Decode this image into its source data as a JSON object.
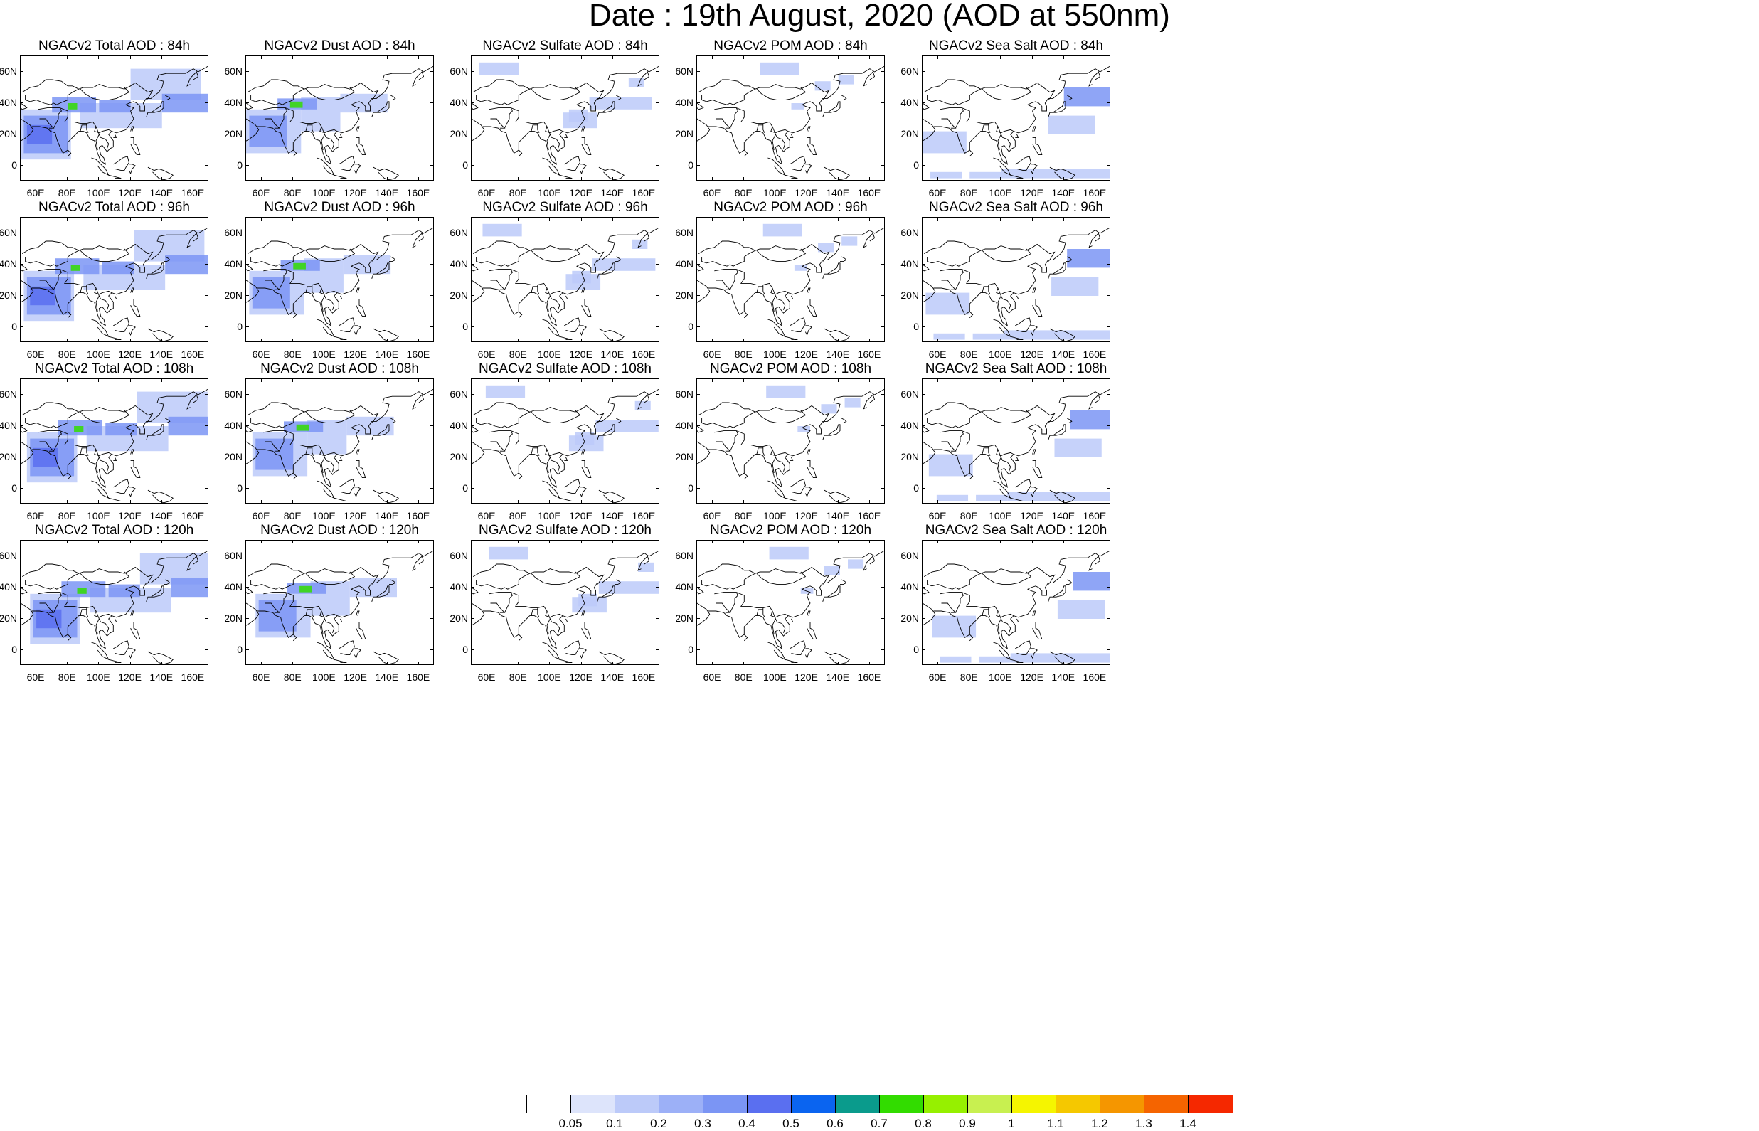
{
  "title": "Date : 19th August, 2020 (AOD at 550nm)",
  "columns": [
    "total",
    "dust",
    "sulfate",
    "pom",
    "seasalt"
  ],
  "rows": [
    "84h",
    "96h",
    "108h",
    "120h"
  ],
  "panel_titles": [
    [
      "NGACv2 Total AOD : 84h",
      "NGACv2 Dust AOD : 84h",
      "NGACv2 Sulfate AOD : 84h",
      "NGACv2 POM AOD : 84h",
      "NGACv2 Sea Salt AOD : 84h"
    ],
    [
      "NGACv2 Total AOD : 96h",
      "NGACv2 Dust AOD : 96h",
      "NGACv2 Sulfate AOD : 96h",
      "NGACv2 POM AOD : 96h",
      "NGACv2 Sea Salt AOD : 96h"
    ],
    [
      "NGACv2 Total AOD : 108h",
      "NGACv2 Dust AOD : 108h",
      "NGACv2 Sulfate AOD : 108h",
      "NGACv2 POM AOD : 108h",
      "NGACv2 Sea Salt AOD : 108h"
    ],
    [
      "NGACv2 Total AOD : 120h",
      "NGACv2 Dust AOD : 120h",
      "NGACv2 Sulfate AOD : 120h",
      "NGACv2 POM AOD : 120h",
      "NGACv2 Sea Salt  AOD : 120h"
    ]
  ],
  "lat_ticks": [
    "60N",
    "40N",
    "20N",
    "0"
  ],
  "lon_ticks": [
    "60E",
    "80E",
    "100E",
    "120E",
    "140E",
    "160E"
  ],
  "map_extent": {
    "lon": [
      50,
      170
    ],
    "lat": [
      -10,
      70
    ]
  },
  "colorbar": {
    "labels": [
      "0.05",
      "0.1",
      "0.2",
      "0.3",
      "0.4",
      "0.5",
      "0.6",
      "0.7",
      "0.8",
      "0.9",
      "1",
      "1.1",
      "1.2",
      "1.3",
      "1.4"
    ],
    "colors": [
      "#ffffff",
      "#dde4fb",
      "#bccaf9",
      "#9cb0f7",
      "#7b95f4",
      "#5a6ff0",
      "#0a64f0",
      "#0a9b8c",
      "#32dc00",
      "#96f000",
      "#c8f050",
      "#f5f500",
      "#f5c800",
      "#f59600",
      "#f56400",
      "#f52800"
    ]
  },
  "colors": {
    "land_outline": "#000000",
    "low_aod": "#bccaf9",
    "mid_aod": "#7b95f4",
    "high_aod": "#5a6ff0",
    "hotspot": "#32dc00"
  }
}
